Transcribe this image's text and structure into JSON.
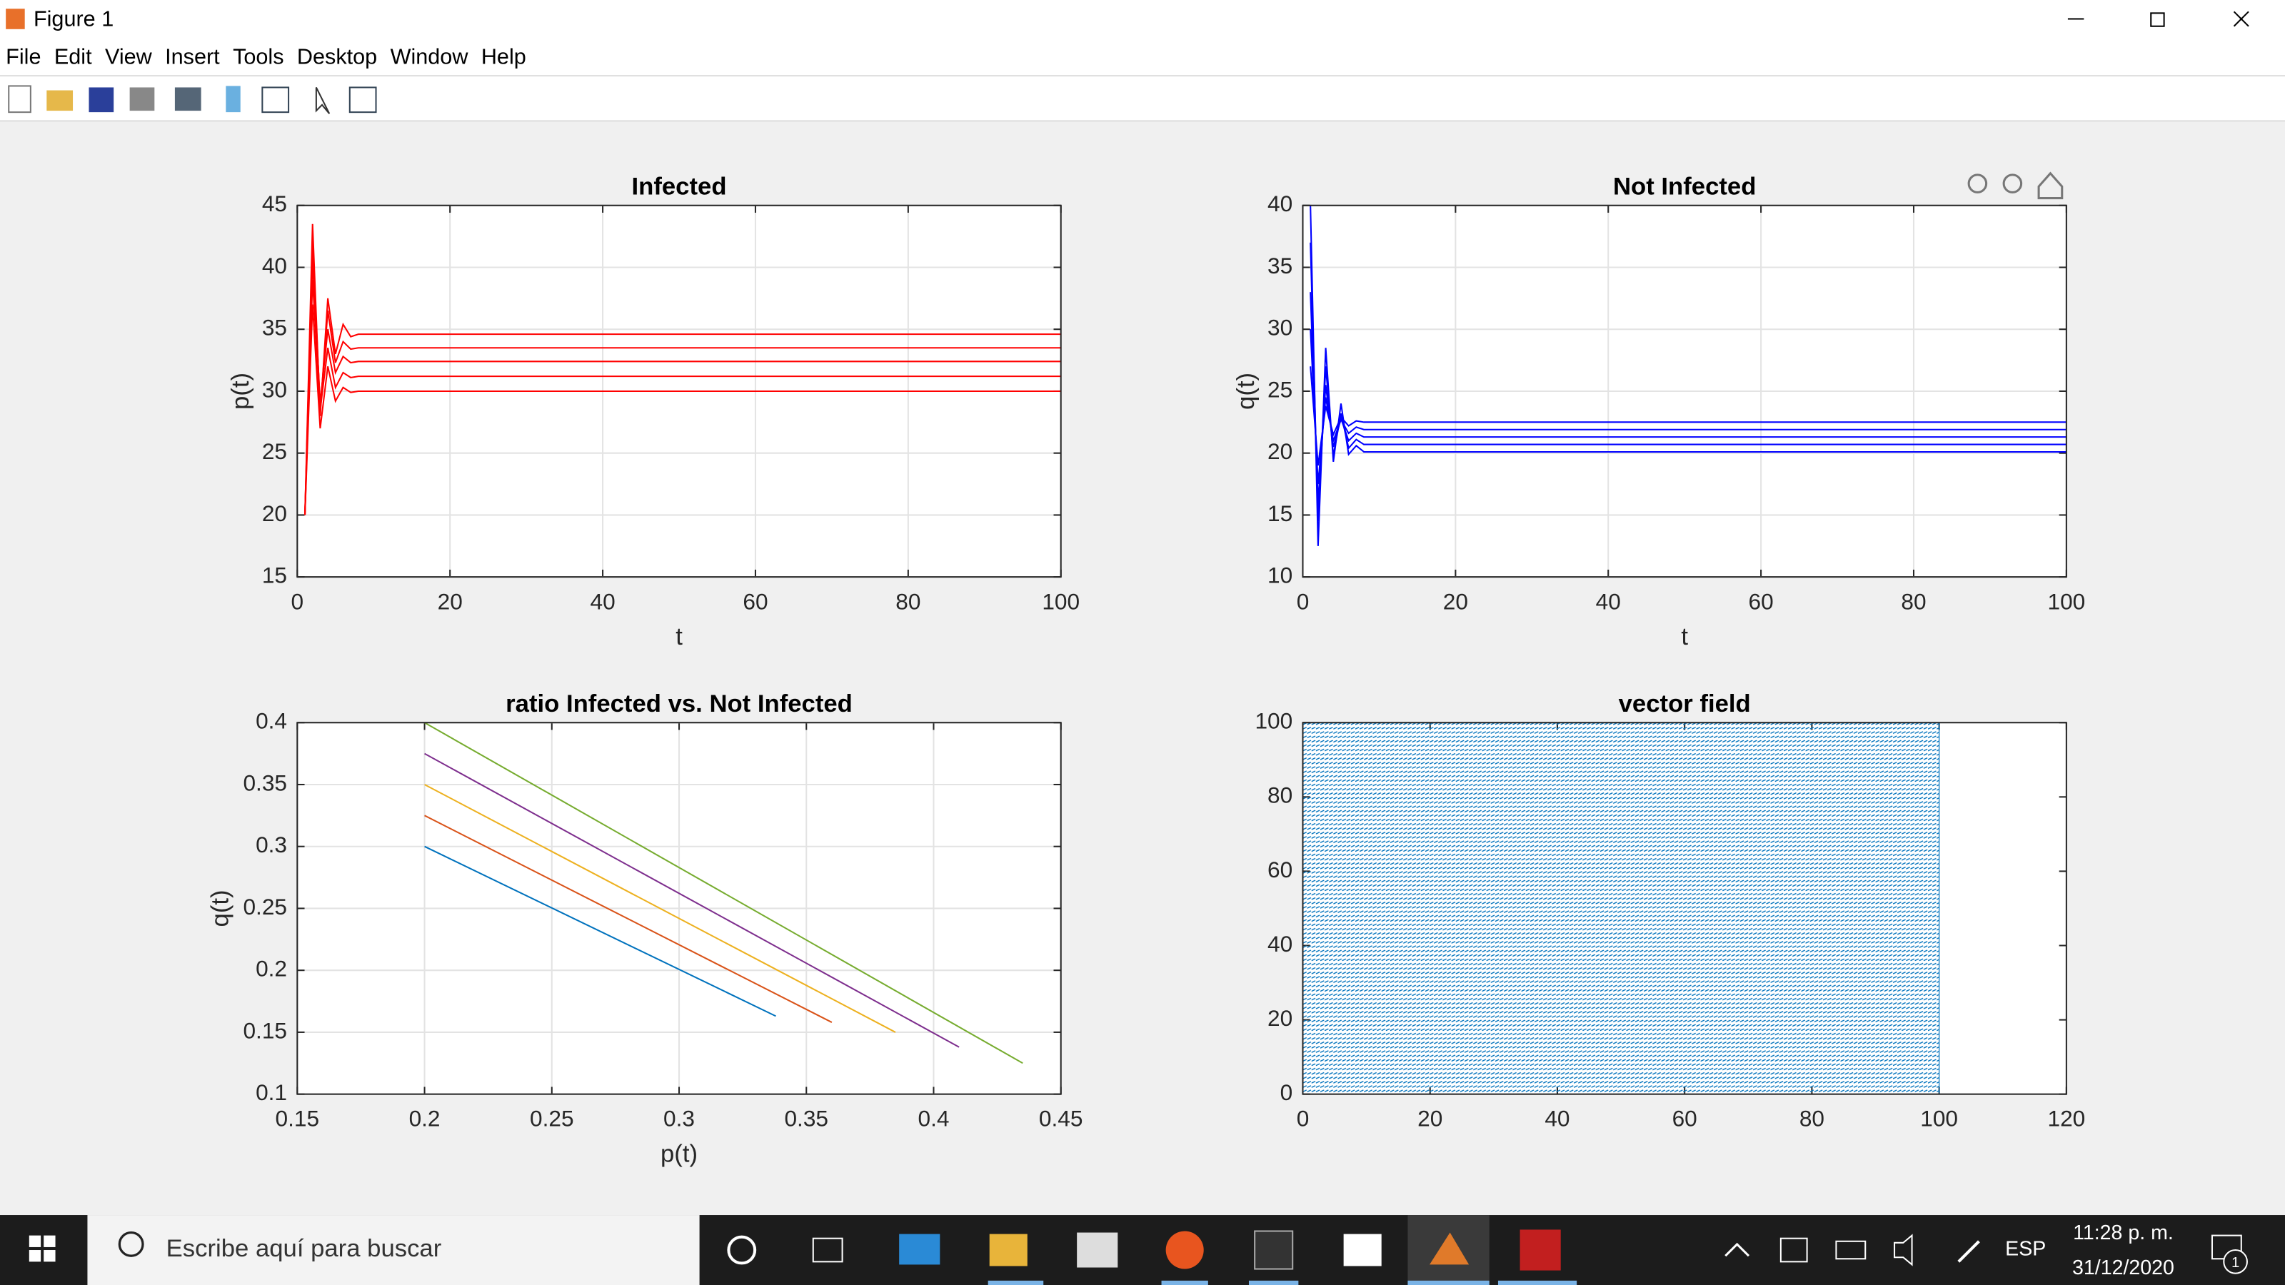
{
  "window": {
    "title": "Figure 1",
    "menu": [
      "File",
      "Edit",
      "View",
      "Insert",
      "Tools",
      "Desktop",
      "Window",
      "Help"
    ]
  },
  "chart_data": [
    {
      "type": "line",
      "title": "Infected",
      "xlabel": "t",
      "ylabel": "p(t)",
      "x": [
        1,
        2,
        3,
        4,
        5,
        6,
        7,
        8,
        9,
        10,
        100
      ],
      "series": [
        {
          "color": "#ff0000",
          "values": [
            20,
            37,
            27,
            32,
            29.2,
            30.3,
            29.9,
            30,
            30,
            30,
            30
          ]
        },
        {
          "color": "#ff0000",
          "values": [
            20,
            39,
            28.5,
            33.5,
            30.3,
            31.5,
            31.1,
            31.2,
            31.2,
            31.2,
            31.2
          ]
        },
        {
          "color": "#ff0000",
          "values": [
            20,
            40.5,
            29,
            35,
            31.5,
            32.8,
            32.3,
            32.4,
            32.4,
            32.4,
            32.4
          ]
        },
        {
          "color": "#ff0000",
          "values": [
            20,
            42,
            28.5,
            36.5,
            32.3,
            34,
            33.4,
            33.5,
            33.5,
            33.5,
            33.5
          ]
        },
        {
          "color": "#ff0000",
          "values": [
            20,
            43.5,
            28,
            37.5,
            33,
            35.4,
            34.4,
            34.6,
            34.6,
            34.6,
            34.6
          ]
        }
      ],
      "xlim": [
        0,
        100
      ],
      "xticks": [
        0,
        20,
        40,
        60,
        80,
        100
      ],
      "ylim": [
        15,
        45
      ],
      "yticks": [
        15,
        20,
        25,
        30,
        35,
        40,
        45
      ],
      "grid": true
    },
    {
      "type": "line",
      "title": "Not Infected",
      "xlabel": "t",
      "ylabel": "q(t)",
      "x": [
        1,
        2,
        3,
        4,
        5,
        6,
        7,
        8,
        9,
        10,
        100
      ],
      "series": [
        {
          "color": "#0000ff",
          "values": [
            40,
            12.5,
            28.5,
            19.3,
            24,
            19.9,
            20.6,
            20.1,
            20.1,
            20.1,
            20.1
          ]
        },
        {
          "color": "#0000ff",
          "values": [
            37,
            14.5,
            27,
            19.8,
            23.2,
            20.4,
            21.1,
            20.7,
            20.7,
            20.7,
            20.7
          ]
        },
        {
          "color": "#0000ff",
          "values": [
            33,
            16,
            25.5,
            20.5,
            22.8,
            21,
            21.6,
            21.3,
            21.3,
            21.3,
            21.3
          ]
        },
        {
          "color": "#0000ff",
          "values": [
            30,
            17.5,
            24.5,
            21,
            22.7,
            21.6,
            22.1,
            21.9,
            21.9,
            21.9,
            21.9
          ]
        },
        {
          "color": "#0000ff",
          "values": [
            27,
            19,
            23.8,
            21.5,
            22.9,
            22.2,
            22.6,
            22.5,
            22.5,
            22.5,
            22.5
          ]
        }
      ],
      "xlim": [
        0,
        100
      ],
      "xticks": [
        0,
        20,
        40,
        60,
        80,
        100
      ],
      "ylim": [
        10,
        40
      ],
      "yticks": [
        10,
        15,
        20,
        25,
        30,
        35,
        40
      ],
      "grid": true
    },
    {
      "type": "line",
      "title": "ratio Infected vs. Not Infected",
      "xlabel": "p(t)",
      "ylabel": "q(t)",
      "series": [
        {
          "color": "#0072BD",
          "x": [
            0.2,
            0.338
          ],
          "values": [
            0.3,
            0.163
          ]
        },
        {
          "color": "#D95319",
          "x": [
            0.2,
            0.36
          ],
          "values": [
            0.325,
            0.158
          ]
        },
        {
          "color": "#EDB120",
          "x": [
            0.2,
            0.385
          ],
          "values": [
            0.35,
            0.15
          ]
        },
        {
          "color": "#7E2F8E",
          "x": [
            0.2,
            0.41
          ],
          "values": [
            0.375,
            0.138
          ]
        },
        {
          "color": "#77AC30",
          "x": [
            0.2,
            0.435
          ],
          "values": [
            0.4,
            0.125
          ]
        }
      ],
      "xlim": [
        0.15,
        0.45
      ],
      "xticks": [
        0.15,
        0.2,
        0.25,
        0.3,
        0.35,
        0.4,
        0.45
      ],
      "ylim": [
        0.1,
        0.4
      ],
      "yticks": [
        0.1,
        0.15,
        0.2,
        0.25,
        0.3,
        0.35,
        0.4
      ],
      "grid": true
    },
    {
      "type": "quiver",
      "title": "vector field",
      "x": [
        0,
        100
      ],
      "y": [
        0,
        100
      ],
      "color": "#0072BD",
      "xlim": [
        0,
        120
      ],
      "xticks": [
        0,
        20,
        40,
        60,
        80,
        100,
        120
      ],
      "ylim": [
        0,
        100
      ],
      "yticks": [
        0,
        20,
        40,
        60,
        80,
        100
      ],
      "grid": false
    }
  ],
  "taskbar": {
    "search": "Escribe aquí para buscar",
    "language": "ESP",
    "time": "11:28 p. m.",
    "date": "31/12/2020",
    "notifications": "1"
  }
}
